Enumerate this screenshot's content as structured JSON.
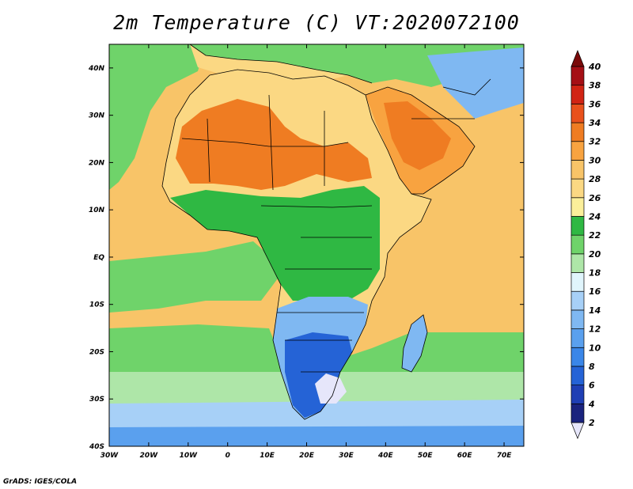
{
  "title": "2m Temperature (C) VT:2020072100",
  "credit": "GrADS: IGES/COLA",
  "map": {
    "lon_labels": [
      "30W",
      "20W",
      "10W",
      "0",
      "10E",
      "20E",
      "30E",
      "40E",
      "50E",
      "60E",
      "70E"
    ],
    "lat_labels": [
      "40S",
      "30S",
      "20S",
      "10S",
      "EQ",
      "10N",
      "20N",
      "30N",
      "40N"
    ],
    "lon_range": [
      -30,
      75
    ],
    "lat_range": [
      -40,
      45
    ]
  },
  "colorbar": {
    "labels": [
      "2",
      "4",
      "6",
      "8",
      "10",
      "12",
      "14",
      "16",
      "18",
      "20",
      "22",
      "24",
      "26",
      "28",
      "30",
      "32",
      "34",
      "36",
      "38",
      "40"
    ],
    "colors": [
      "#e6e6fa",
      "#1a237e",
      "#1f3fb4",
      "#2563d6",
      "#3a86e8",
      "#5aa0ee",
      "#7fb8f2",
      "#a7d0f7",
      "#e0f5fc",
      "#aee6a8",
      "#6fd36a",
      "#2fb843",
      "#fbef9a",
      "#fbd883",
      "#f8c468",
      "#f8a340",
      "#ef7c22",
      "#e9511c",
      "#d12414",
      "#a50f15",
      "#7a0a0a"
    ]
  },
  "palette": {
    "ocean_warm": "#f8c468",
    "ocean_green": "#6fd36a",
    "ocean_cool": "#aee6a8",
    "ocean_cold": "#a7d0f7",
    "ocean_coldest": "#5aa0ee",
    "land_hot": "#ef7c22",
    "land_warm": "#f8a340",
    "land_mild": "#fbd883",
    "land_green": "#2fb843",
    "land_cool": "#7fb8f2",
    "land_cold": "#2563d6",
    "land_coldest": "#e6e6fa"
  }
}
